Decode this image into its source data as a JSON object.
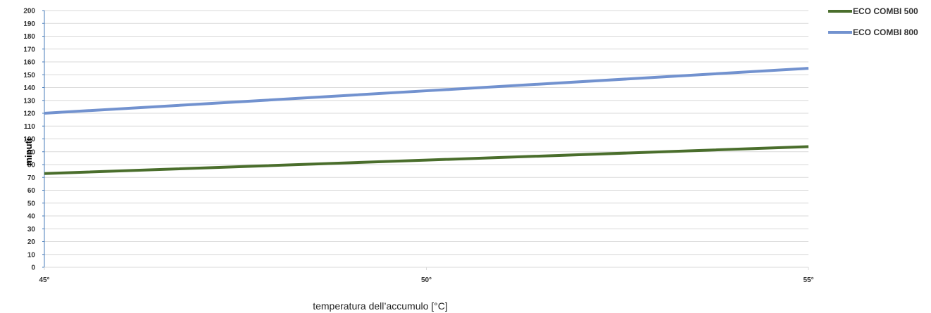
{
  "chart_data": {
    "type": "line",
    "xlabel": "temperatura dell’accumulo [°C]",
    "ylabel": "minuti",
    "categories": [
      "45°",
      "50°",
      "55°"
    ],
    "x": [
      45,
      50,
      55
    ],
    "xlim": [
      45,
      55
    ],
    "ylim": [
      0,
      200
    ],
    "ytick_step": 10,
    "grid": true,
    "legend": "top-right",
    "series": [
      {
        "name": "ECO COMBI 500",
        "color": "#4a6e2c",
        "values": [
          73,
          83.5,
          94
        ]
      },
      {
        "name": "ECO COMBI 800",
        "color": "#7292cf",
        "values": [
          120,
          137.5,
          155
        ]
      }
    ]
  },
  "colors": {
    "grid": "#d9d9d9",
    "axis": "#4a7ebb"
  }
}
